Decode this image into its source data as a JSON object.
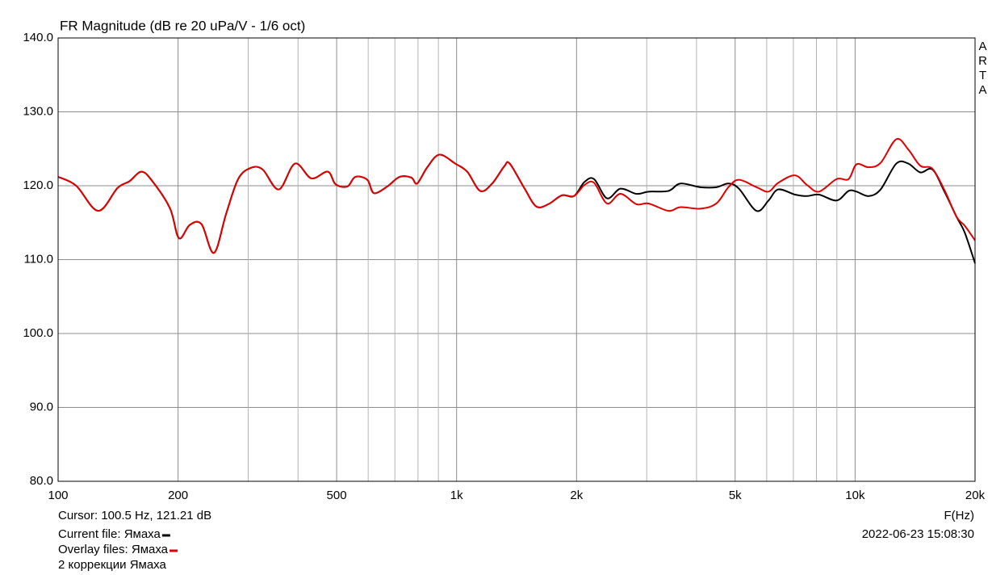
{
  "chart_data": {
    "type": "line",
    "title": "FR Magnitude (dB re 20 uPa/V - 1/6 oct)",
    "side_label": "ARTA",
    "cursor": "Cursor: 100.5 Hz, 121.21 dB",
    "x_label": "F(Hz)",
    "timestamp": "2022-06-23  15:08:30",
    "note": "2 коррекции Ямаха",
    "x_log": true,
    "grid": true,
    "xlim": [
      100,
      20000
    ],
    "ylim": [
      80,
      140
    ],
    "xticks": [
      100,
      200,
      500,
      {
        "value": 1000,
        "label": "1k"
      },
      {
        "value": 2000,
        "label": "2k"
      },
      {
        "value": 5000,
        "label": "5k"
      },
      {
        "value": 10000,
        "label": "10k"
      },
      {
        "value": 20000,
        "label": "20k"
      }
    ],
    "xgrid_minor": [
      300,
      400,
      600,
      700,
      800,
      900,
      3000,
      4000,
      6000,
      7000,
      8000,
      9000
    ],
    "yticks": [
      {
        "value": 80,
        "label": "80.0"
      },
      {
        "value": 90,
        "label": "90.0"
      },
      {
        "value": 100,
        "label": "100.0"
      },
      {
        "value": 110,
        "label": "110.0"
      },
      {
        "value": 120,
        "label": "120.0"
      },
      {
        "value": 130,
        "label": "130.0"
      },
      {
        "value": 140,
        "label": "140.0"
      }
    ],
    "x": [
      100,
      111,
      126,
      141,
      151,
      162,
      173,
      191,
      201,
      214,
      229,
      246,
      264,
      283,
      304,
      326,
      358,
      393,
      432,
      475,
      497,
      532,
      557,
      597,
      620,
      670,
      719,
      770,
      796,
      844,
      905,
      992,
      1063,
      1146,
      1228,
      1316,
      1359,
      1478,
      1584,
      1699,
      1838,
      1970,
      2093,
      2213,
      2384,
      2578,
      2827,
      3030,
      3401,
      3646,
      4092,
      4486,
      4810,
      5112,
      5657,
      6064,
      6414,
      7066,
      7574,
      8116,
      8986,
      9630,
      10082,
      10810,
      11590,
      12690,
      13600,
      14580,
      15630,
      16760,
      17970,
      18830,
      20000
    ],
    "series": [
      {
        "name": "Current file: Ямаха",
        "color": "#000000",
        "values": [
          121.2,
          120.0,
          116.6,
          119.7,
          120.6,
          121.9,
          120.5,
          116.9,
          112.9,
          114.7,
          114.8,
          110.9,
          116.2,
          120.9,
          122.4,
          122.2,
          119.5,
          123.0,
          121.0,
          121.9,
          120.2,
          119.9,
          121.2,
          120.8,
          119.0,
          119.9,
          121.2,
          121.1,
          120.3,
          122.5,
          124.2,
          123.0,
          121.9,
          119.3,
          120.3,
          122.6,
          123.0,
          119.7,
          117.2,
          117.5,
          118.7,
          118.6,
          120.5,
          120.9,
          118.3,
          119.6,
          118.9,
          119.2,
          119.3,
          120.3,
          119.8,
          119.8,
          120.3,
          119.6,
          116.6,
          118.0,
          119.5,
          118.8,
          118.6,
          118.8,
          118.0,
          119.3,
          119.2,
          118.6,
          119.5,
          123.0,
          123.0,
          121.8,
          122.2,
          119.2,
          115.8,
          113.7,
          109.5
        ]
      },
      {
        "name": "Overlay files: Ямаха",
        "color": "#e00000",
        "values": [
          121.2,
          120.0,
          116.6,
          119.7,
          120.6,
          121.9,
          120.5,
          116.9,
          112.9,
          114.7,
          114.8,
          110.9,
          116.2,
          120.9,
          122.4,
          122.2,
          119.5,
          123.0,
          121.0,
          121.9,
          120.2,
          119.9,
          121.2,
          120.8,
          119.0,
          119.9,
          121.2,
          121.1,
          120.3,
          122.5,
          124.2,
          123.0,
          121.9,
          119.3,
          120.3,
          122.6,
          123.0,
          119.7,
          117.2,
          117.5,
          118.7,
          118.6,
          120.1,
          120.4,
          117.6,
          118.9,
          117.5,
          117.6,
          116.6,
          117.1,
          116.9,
          117.6,
          119.8,
          120.8,
          119.8,
          119.2,
          120.4,
          121.4,
          120.1,
          119.2,
          120.9,
          120.9,
          122.9,
          122.5,
          123.1,
          126.3,
          124.9,
          122.7,
          122.3,
          119.4,
          115.8,
          114.6,
          112.6
        ]
      }
    ]
  }
}
